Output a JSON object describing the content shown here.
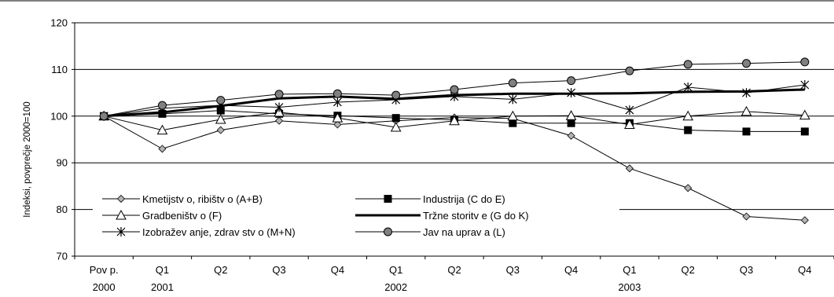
{
  "chart_data": {
    "type": "line",
    "title": "",
    "xlabel": "",
    "ylabel": "Indeksi, povprečje 2000=100",
    "ylim": [
      70,
      120
    ],
    "yticks": [
      70,
      80,
      90,
      100,
      110,
      120
    ],
    "grid": true,
    "legend_position": "inside-bottom-left",
    "categories": [
      "Pov p.",
      "Q1",
      "Q2",
      "Q3",
      "Q4",
      "Q1",
      "Q2",
      "Q3",
      "Q4",
      "Q1",
      "Q2",
      "Q3",
      "Q4"
    ],
    "year_labels": [
      {
        "index": 0,
        "label": "2000"
      },
      {
        "index": 1,
        "label": "2001"
      },
      {
        "index": 5,
        "label": "2002"
      },
      {
        "index": 9,
        "label": "2003"
      }
    ],
    "series": [
      {
        "name": "Kmetijstv o, ribištv o (A+B)",
        "marker": "diamond",
        "color": "#000000",
        "line_width": 1,
        "values": [
          100,
          93,
          97,
          99,
          98.2,
          99,
          99.7,
          99.5,
          95.8,
          88.8,
          84.6,
          78.5,
          77.7
        ]
      },
      {
        "name": "Industrija (C do E)",
        "marker": "square",
        "color": "#000000",
        "line_width": 1,
        "values": [
          100,
          100.5,
          101.2,
          100.5,
          100.1,
          99.6,
          99.2,
          98.5,
          98.5,
          98.5,
          97,
          96.7,
          96.7
        ]
      },
      {
        "name": "Gradbeništv o (F)",
        "marker": "triangle",
        "color": "#000000",
        "line_width": 1,
        "values": [
          100,
          97,
          99.3,
          100.8,
          99.6,
          97.6,
          99,
          100,
          100.1,
          98.2,
          100,
          101,
          100.2
        ]
      },
      {
        "name": "Tržne storitv e (G do K)",
        "marker": "none",
        "color": "#000000",
        "line_width": 3,
        "values": [
          100,
          100.8,
          102.2,
          103.8,
          104.2,
          103.7,
          104.5,
          104.8,
          104.8,
          104.9,
          105.2,
          105.3,
          105.7
        ]
      },
      {
        "name": "Izobražev anje, zdrav stv o (M+N)",
        "marker": "star",
        "color": "#000000",
        "line_width": 1,
        "values": [
          100,
          101.7,
          102.3,
          101.9,
          103,
          103.5,
          104.2,
          103.6,
          105,
          101.3,
          106.2,
          105,
          106.7
        ]
      },
      {
        "name": "Jav na uprav a (L)",
        "marker": "circle",
        "color": "#000000",
        "line_width": 1,
        "values": [
          100,
          102.3,
          103.4,
          104.7,
          104.8,
          104.5,
          105.7,
          107.1,
          107.6,
          109.7,
          111.1,
          111.3,
          111.6
        ]
      }
    ]
  }
}
